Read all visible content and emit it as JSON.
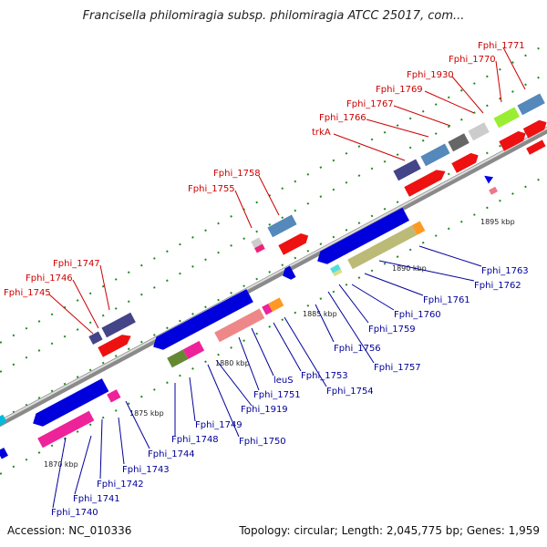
{
  "title": "Francisella philomiragia subsp. philomiragia ATCC 25017, com...",
  "footer": {
    "accession": "Accession: NC_010336",
    "topology": "Topology: circular; Length: 2,045,775 bp; Genes: 1,959"
  },
  "colors": {
    "upper_label": "#cc0000",
    "lower_label": "#000099",
    "backbone": "#999999"
  },
  "scale_labels": [
    "1870 kbp",
    "1875 kbp",
    "1880 kbp",
    "1885 kbp",
    "1890 kbp",
    "1895 kbp"
  ],
  "upper_labels": [
    "Fphi_1745",
    "Fphi_1746",
    "Fphi_1747",
    "Fphi_1755",
    "Fphi_1758",
    "trkA",
    "Fphi_1766",
    "Fphi_1767",
    "Fphi_1769",
    "Fphi_1930",
    "Fphi_1770",
    "Fphi_1771"
  ],
  "lower_labels": [
    "Fphi_1740",
    "Fphi_1741",
    "Fphi_1742",
    "Fphi_1743",
    "Fphi_1744",
    "Fphi_1748",
    "Fphi_1749",
    "Fphi_1750",
    "Fphi_1919",
    "Fphi_1751",
    "leuS",
    "Fphi_1753",
    "Fphi_1754",
    "Fphi_1756",
    "Fphi_1757",
    "Fphi_1759",
    "Fphi_1760",
    "Fphi_1761",
    "Fphi_1762",
    "Fphi_1763"
  ]
}
